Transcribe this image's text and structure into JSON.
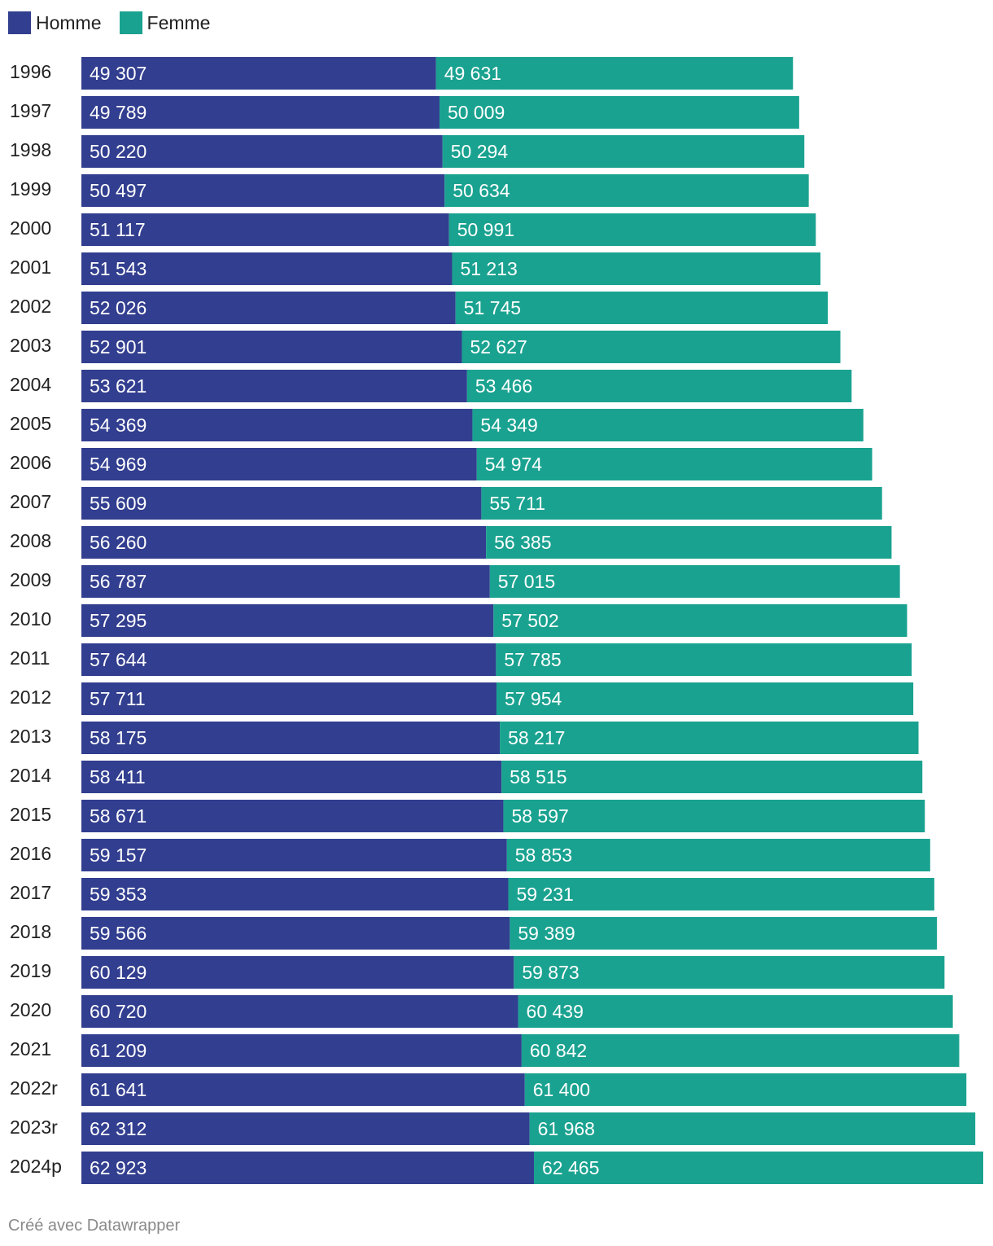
{
  "legend": [
    {
      "label": "Homme",
      "color": "#323e8f"
    },
    {
      "label": "Femme",
      "color": "#1aa290"
    }
  ],
  "footer": "Créé avec Datawrapper",
  "chart_data": {
    "type": "bar",
    "orientation": "horizontal",
    "stacked": true,
    "categories": [
      "1996",
      "1997",
      "1998",
      "1999",
      "2000",
      "2001",
      "2002",
      "2003",
      "2004",
      "2005",
      "2006",
      "2007",
      "2008",
      "2009",
      "2010",
      "2011",
      "2012",
      "2013",
      "2014",
      "2015",
      "2016",
      "2017",
      "2018",
      "2019",
      "2020",
      "2021",
      "2022r",
      "2023r",
      "2024p"
    ],
    "series": [
      {
        "name": "Homme",
        "color": "#323e8f",
        "values": [
          49307,
          49789,
          50220,
          50497,
          51117,
          51543,
          52026,
          52901,
          53621,
          54369,
          54969,
          55609,
          56260,
          56787,
          57295,
          57644,
          57711,
          58175,
          58411,
          58671,
          59157,
          59353,
          59566,
          60129,
          60720,
          61209,
          61641,
          62312,
          62923
        ],
        "labels": [
          "49 307",
          "49 789",
          "50 220",
          "50 497",
          "51 117",
          "51 543",
          "52 026",
          "52 901",
          "53 621",
          "54 369",
          "54 969",
          "55 609",
          "56 260",
          "56 787",
          "57 295",
          "57 644",
          "57 711",
          "58 175",
          "58 411",
          "58 671",
          "59 157",
          "59 353",
          "59 566",
          "60 129",
          "60 720",
          "61 209",
          "61 641",
          "62 312",
          "62 923"
        ]
      },
      {
        "name": "Femme",
        "color": "#1aa290",
        "values": [
          49631,
          50009,
          50294,
          50634,
          50991,
          51213,
          51745,
          52627,
          53466,
          54349,
          54974,
          55711,
          56385,
          57015,
          57502,
          57785,
          57954,
          58217,
          58515,
          58597,
          58853,
          59231,
          59389,
          59873,
          60439,
          60842,
          61400,
          61968,
          62465
        ],
        "labels": [
          "49 631",
          "50 009",
          "50 294",
          "50 634",
          "50 991",
          "51 213",
          "51 745",
          "52 627",
          "53 466",
          "54 349",
          "54 974",
          "55 711",
          "56 385",
          "57 015",
          "57 502",
          "57 785",
          "57 954",
          "58 217",
          "58 515",
          "58 597",
          "58 853",
          "59 231",
          "59 389",
          "59 873",
          "60 439",
          "60 842",
          "61 400",
          "61 968",
          "62 465"
        ]
      }
    ],
    "xlim": [
      0,
      125388
    ],
    "title": "",
    "xlabel": "",
    "ylabel": ""
  }
}
